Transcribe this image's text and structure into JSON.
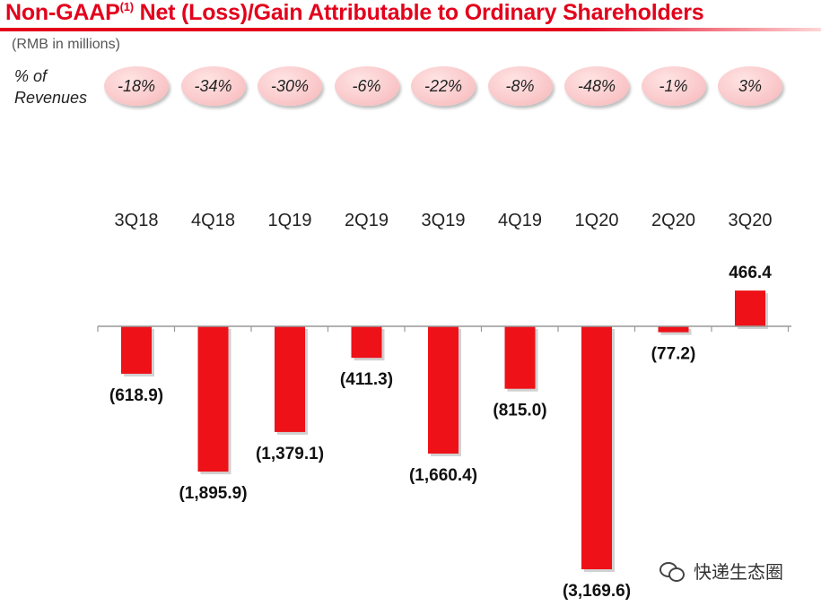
{
  "title": {
    "main_prefix": "Non-GAAP",
    "superscript": "(1)",
    "main_suffix": " Net (Loss)/Gain Attributable to Ordinary Shareholders"
  },
  "unit": "(RMB in millions)",
  "pct_label": {
    "line1": "% of",
    "line2": "Revenues"
  },
  "watermark": "快递生态圈",
  "colors": {
    "title": "#e3001b",
    "bar": "#ee1118",
    "oval": "#f9c4c6"
  },
  "chart_data": {
    "type": "bar",
    "categories": [
      "3Q18",
      "4Q18",
      "1Q19",
      "2Q19",
      "3Q19",
      "4Q19",
      "1Q20",
      "2Q20",
      "3Q20"
    ],
    "values": [
      -618.9,
      -1895.9,
      -1379.1,
      -411.3,
      -1660.4,
      -815.0,
      -3169.6,
      -77.2,
      466.4
    ],
    "value_labels": [
      "(618.9)",
      "(1,895.9)",
      "(1,379.1)",
      "(411.3)",
      "(1,660.4)",
      "(815.0)",
      "(3,169.6)",
      "(77.2)",
      "466.4"
    ],
    "pct_of_revenues": [
      "-18%",
      "-34%",
      "-30%",
      "-6%",
      "-22%",
      "-8%",
      "-48%",
      "-1%",
      "3%"
    ],
    "grid": false,
    "legend": "none"
  }
}
